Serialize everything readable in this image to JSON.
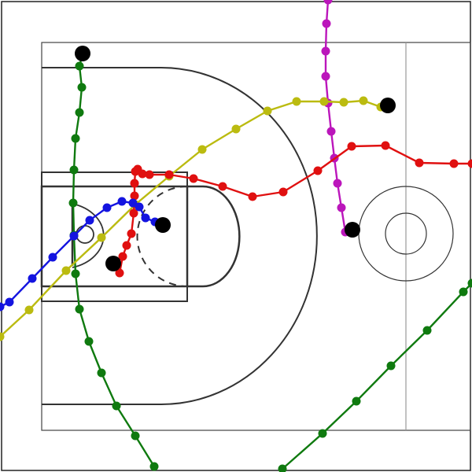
{
  "court": {
    "line_color": "#333333",
    "midcourt_line_color": "#999999",
    "frame_color": "#222222",
    "background": "#ffffff"
  },
  "tracks": [
    {
      "name": "green",
      "color": "#0f7a0f",
      "segments": [
        [
          [
            105,
            68
          ],
          [
            101,
            84
          ],
          [
            104,
            111
          ],
          [
            101,
            143
          ],
          [
            96,
            176
          ],
          [
            94,
            216
          ],
          [
            93,
            258
          ],
          [
            94,
            299
          ],
          [
            96,
            348
          ],
          [
            101,
            393
          ],
          [
            113,
            434
          ],
          [
            129,
            474
          ],
          [
            148,
            516
          ],
          [
            172,
            554
          ],
          [
            196,
            593
          ]
        ],
        [
          [
            359,
            596
          ],
          [
            410,
            551
          ],
          [
            453,
            510
          ],
          [
            497,
            465
          ],
          [
            543,
            420
          ],
          [
            589,
            371
          ],
          [
            600,
            360
          ]
        ]
      ],
      "end_marker": [
        105,
        68
      ]
    },
    {
      "name": "magenta",
      "color": "#bb16bb",
      "segments": [
        [
          [
            417,
            0
          ],
          [
            415,
            30
          ],
          [
            414,
            65
          ],
          [
            414,
            97
          ],
          [
            417,
            131
          ],
          [
            421,
            167
          ],
          [
            425,
            201
          ],
          [
            429,
            233
          ],
          [
            434,
            264
          ],
          [
            439,
            295
          ]
        ]
      ],
      "end_marker": [
        448,
        292
      ]
    },
    {
      "name": "yellow",
      "color": "#bbbb10",
      "segments": [
        [
          [
            0,
            428
          ],
          [
            37,
            394
          ],
          [
            84,
            344
          ],
          [
            129,
            302
          ],
          [
            172,
            260
          ],
          [
            215,
            224
          ],
          [
            257,
            190
          ],
          [
            300,
            164
          ],
          [
            340,
            141
          ],
          [
            377,
            129
          ],
          [
            412,
            129
          ],
          [
            437,
            130
          ],
          [
            462,
            128
          ],
          [
            484,
            136
          ]
        ]
      ],
      "end_marker": [
        493,
        134
      ]
    },
    {
      "name": "red",
      "color": "#e01010",
      "segments": [
        [
          [
            152,
            347
          ],
          [
            156,
            326
          ],
          [
            161,
            312
          ],
          [
            167,
            297
          ],
          [
            170,
            271
          ],
          [
            171,
            249
          ],
          [
            171,
            233
          ],
          [
            172,
            218
          ],
          [
            175,
            215
          ],
          [
            181,
            221
          ],
          [
            190,
            222
          ],
          [
            215,
            222
          ],
          [
            246,
            227
          ],
          [
            283,
            237
          ],
          [
            321,
            250
          ],
          [
            360,
            244
          ],
          [
            404,
            217
          ],
          [
            447,
            186
          ],
          [
            490,
            185
          ],
          [
            533,
            207
          ],
          [
            577,
            208
          ],
          [
            600,
            208
          ]
        ]
      ],
      "end_marker": [
        144,
        335
      ]
    },
    {
      "name": "blue",
      "color": "#1414e0",
      "segments": [
        [
          [
            0,
            390
          ],
          [
            12,
            384
          ],
          [
            41,
            354
          ],
          [
            67,
            327
          ],
          [
            94,
            300
          ],
          [
            114,
            280
          ],
          [
            136,
            264
          ],
          [
            155,
            256
          ],
          [
            169,
            258
          ],
          [
            177,
            263
          ],
          [
            185,
            277
          ],
          [
            197,
            282
          ]
        ]
      ],
      "end_marker": [
        207,
        286
      ]
    }
  ]
}
